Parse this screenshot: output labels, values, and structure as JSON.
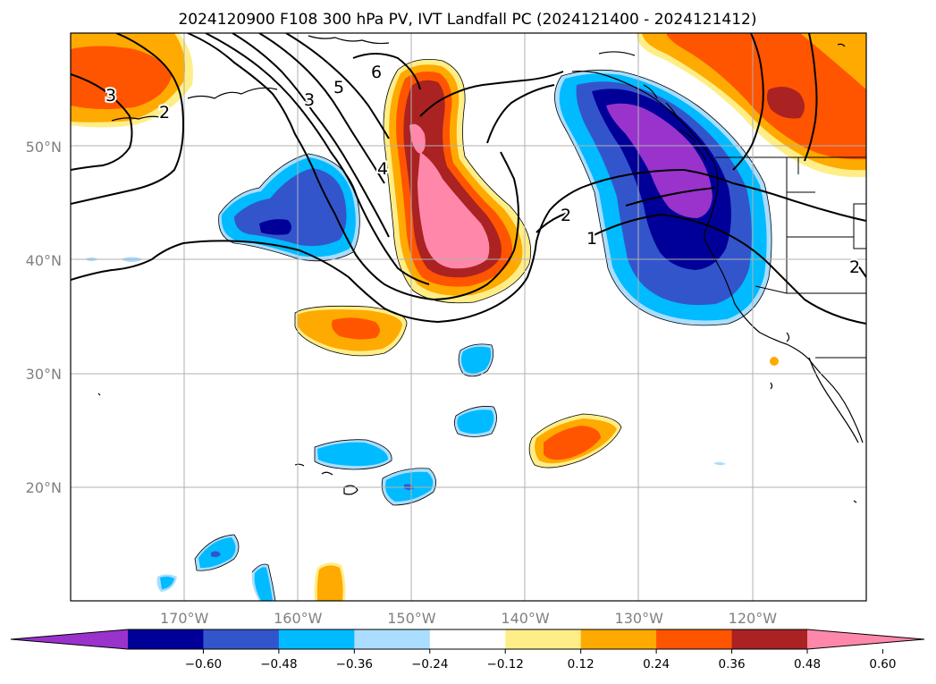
{
  "title": "2024120900 F108 300 hPa PV, IVT Landfall PC (2024121400 - 2024121412)",
  "map": {
    "lat_range": [
      10,
      60
    ],
    "lon_range": [
      -180,
      -110
    ],
    "lat_ticks": [
      {
        "value": 20,
        "label": "20°N"
      },
      {
        "value": 30,
        "label": "30°N"
      },
      {
        "value": 40,
        "label": "40°N"
      },
      {
        "value": 50,
        "label": "50°N"
      }
    ],
    "lon_ticks": [
      {
        "value": -170,
        "label": "170°W"
      },
      {
        "value": -160,
        "label": "160°W"
      },
      {
        "value": -150,
        "label": "150°W"
      },
      {
        "value": -140,
        "label": "140°W"
      },
      {
        "value": -130,
        "label": "130°W"
      },
      {
        "value": -120,
        "label": "120°W"
      }
    ],
    "gridlines": true,
    "contour_labels": [
      "3",
      "2",
      "3",
      "5",
      "6",
      "4",
      "2",
      "1",
      "2"
    ]
  },
  "colorbar": {
    "ticks": [
      "−0.60",
      "−0.48",
      "−0.36",
      "−0.24",
      "−0.12",
      "0.12",
      "0.24",
      "0.36",
      "0.48",
      "0.60"
    ],
    "colors": [
      "#9933cc",
      "#000099",
      "#3355cc",
      "#00bbff",
      "#aaddff",
      "#ffffff",
      "#ffee88",
      "#ffaa00",
      "#ff5500",
      "#aa2222",
      "#ff88aa"
    ],
    "extend": "both"
  },
  "colors": {
    "purple": "#9933cc",
    "navy": "#000099",
    "blue": "#3355cc",
    "cyan": "#00bbff",
    "lightblue": "#aaddff",
    "yellow": "#ffee88",
    "orange": "#ffaa00",
    "redorange": "#ff5500",
    "darkred": "#aa2222",
    "pink": "#ff88aa",
    "grid": "#b0b0b0"
  }
}
